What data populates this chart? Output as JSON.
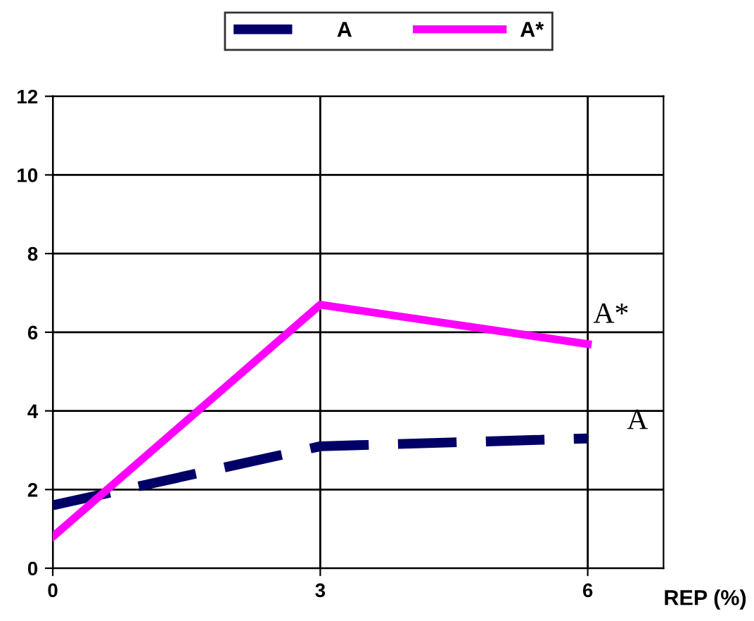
{
  "chart_data": {
    "type": "line",
    "xlabel": "REP (%)",
    "x": [
      0,
      3,
      6
    ],
    "series": [
      {
        "name": "A",
        "color": "#000066",
        "values": [
          1.6,
          3.1,
          3.3
        ],
        "line_style": "dashed"
      },
      {
        "name": "A*",
        "color": "#ff00ff",
        "values": [
          0.8,
          6.7,
          5.7
        ],
        "line_style": "solid"
      }
    ],
    "xlim": [
      0,
      6.85
    ],
    "xticks": [
      0,
      3,
      6
    ],
    "ylim": [
      0,
      12
    ],
    "yticks": [
      0,
      2,
      4,
      6,
      8,
      10,
      12
    ],
    "grid": true,
    "legend": "top",
    "marker": "none",
    "annotations": [
      "A*",
      "A"
    ]
  }
}
